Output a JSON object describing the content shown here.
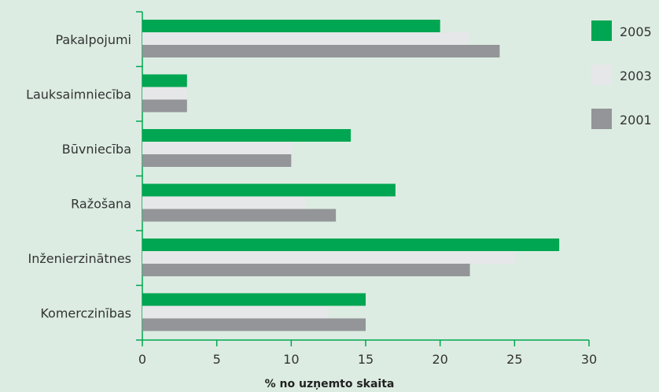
{
  "chart_data": {
    "type": "bar",
    "orientation": "horizontal",
    "categories": [
      "Pakalpojumi",
      "Lauksaimniecība",
      "Būvniecība",
      "Ražošana",
      "Inženierzinātnes",
      "Komerczinības"
    ],
    "series": [
      {
        "name": "2005",
        "color": "#00a651",
        "values": [
          20,
          3,
          14,
          17,
          28,
          15
        ]
      },
      {
        "name": "2003",
        "color": "#e6e7e8",
        "values": [
          22,
          3,
          10,
          11,
          25,
          12.5
        ]
      },
      {
        "name": "2001",
        "color": "#939598",
        "values": [
          24,
          3,
          10,
          13,
          22,
          15
        ]
      }
    ],
    "xlabel": "% no uzņemto skaita",
    "ylabel": "",
    "xlim": [
      0,
      30
    ],
    "xticks": [
      "0",
      "5",
      "10",
      "15",
      "20",
      "25",
      "30"
    ],
    "grid": false,
    "legend_position": "right"
  },
  "colors": {
    "background": "#dcece2",
    "axis": "#00a651"
  }
}
